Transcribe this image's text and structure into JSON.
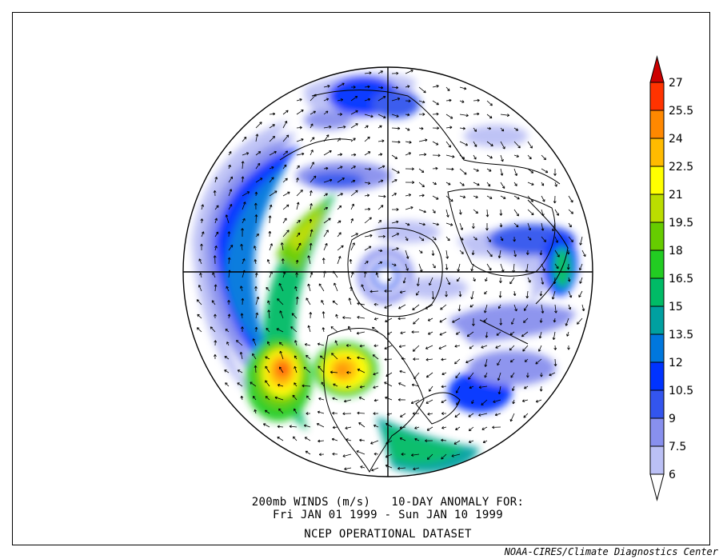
{
  "figure": {
    "title_line1": "200mb WINDS (m/s)   10-DAY ANOMALY FOR:",
    "title_line2": "Fri JAN 01 1999 - Sun JAN 10 1999",
    "dataset": "NCEP OPERATIONAL DATASET",
    "credit": "NOAA-CIRES/Climate Diagnostics Center"
  },
  "map": {
    "projection": "polar-stereographic-north",
    "variable": "200mb wind speed anomaly",
    "units": "m/s"
  },
  "colorbar": {
    "levels": [
      "27",
      "25.5",
      "24",
      "22.5",
      "21",
      "19.5",
      "18",
      "16.5",
      "15",
      "13.5",
      "12",
      "10.5",
      "9",
      "7.5",
      "6"
    ],
    "colors": [
      "#cc0000",
      "#ff3300",
      "#ff8800",
      "#ffbb00",
      "#ffff00",
      "#bbdd00",
      "#66cc00",
      "#22cc22",
      "#00bb66",
      "#00a0a0",
      "#0077dd",
      "#0033ff",
      "#3355ee",
      "#8890ee",
      "#bbc0f5",
      "#ffffff"
    ]
  }
}
